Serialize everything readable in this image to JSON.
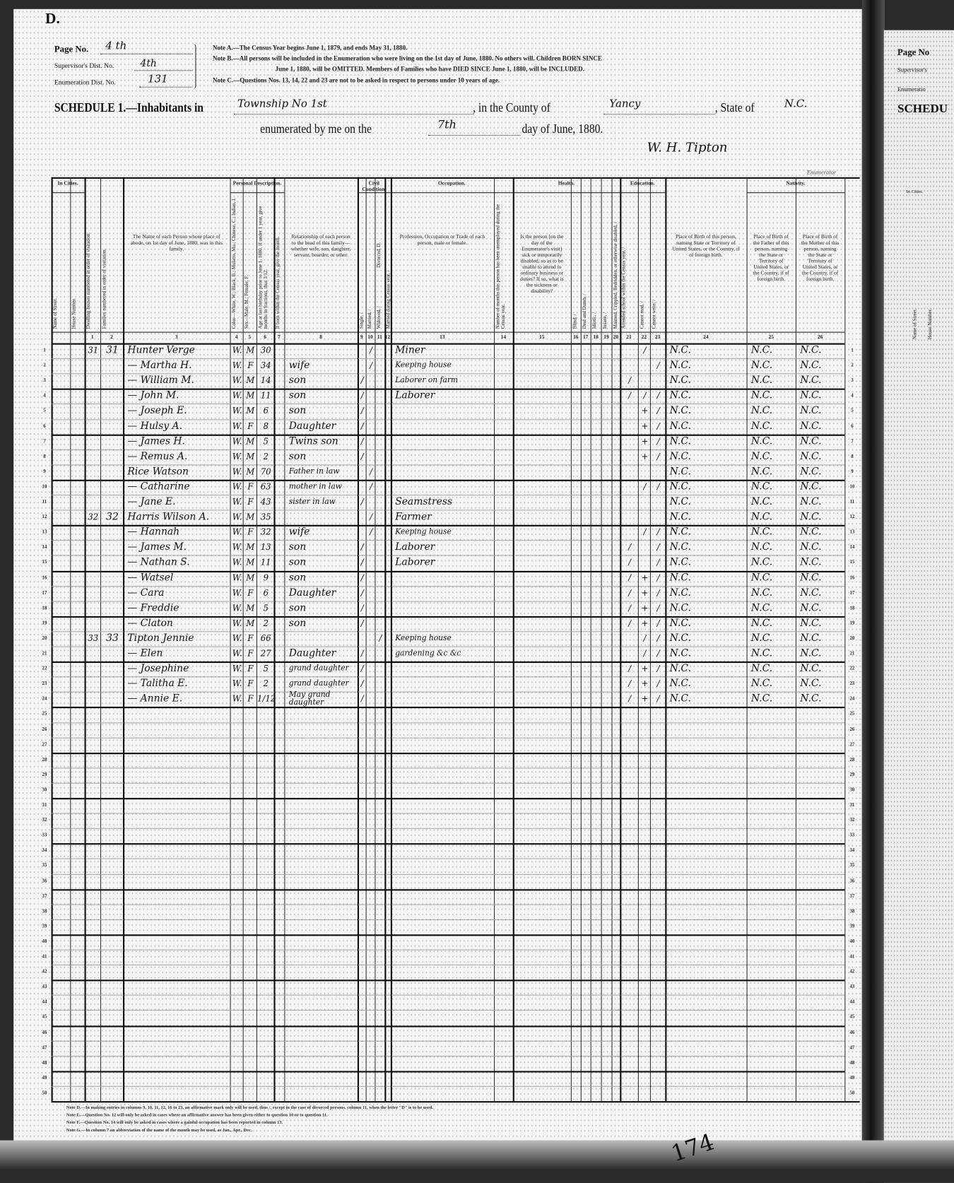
{
  "form_letter": "D.",
  "header": {
    "page_no_label": "Page No.",
    "page_no_value": "4 th",
    "supervisor_label": "Supervisor's Dist. No.",
    "supervisor_value": "4th",
    "enumeration_label": "Enumeration Dist. No.",
    "enumeration_value": "131",
    "notes": [
      "Note A.—The Census Year begins June 1, 1879, and ends May 31, 1880.",
      "Note B.—All persons will be included in the Enumeration who were living on the 1st day of June, 1880.  No others will.  Children BORN SINCE",
      "June 1, 1880, will be OMITTED.  Members of Families who have DIED SINCE June 1, 1880, will be INCLUDED.",
      "Note C.—Questions Nos. 13, 14, 22 and 23 are not to be asked in respect to persons under 10 years of age."
    ],
    "schedule_prefix": "SCHEDULE 1.—Inhabitants in",
    "township_value": "Township No 1st",
    "county_label": ", in the County of",
    "county_value": "Yancy",
    "state_label": ", State of",
    "state_value": "N.C.",
    "enumerated_label": "enumerated by me on the",
    "day_value": "7th",
    "day_suffix": "day of June, 1880.",
    "enumerator_signature": "W. H. Tipton",
    "enumerator_label": "Enumerator"
  },
  "group_headers": {
    "in_cities": "In Cities.",
    "personal": "Personal Description.",
    "civil": "Civil Condition.",
    "occupation": "Occupation.",
    "health": "Health.",
    "education": "Education.",
    "nativity": "Nativity."
  },
  "column_headers": {
    "street": "Name of Street.",
    "house": "House Number.",
    "dwelling": "Dwelling houses numbered in order of visitation.",
    "family": "Families numbered in order of visitation.",
    "name": "The Name of each Person whose place of abode, on 1st day of June, 1880, was in this family.",
    "color": "Color—White, W.; Black, B.; Mulatto, Mu.; Chinese, C.; Indian, I.",
    "sex": "Sex—Male, M.; Female, F.",
    "age": "Age at last birthday prior to June 1, 1880. If under 1 year, give months in fractions, thus 3/12.",
    "month": "If born within the Census year, give the month.",
    "relationship": "Relationship of each person to the head of this family—whether wife, son, daughter, servant, boarder, or other.",
    "single": "Single, /",
    "married": "Married, /",
    "widowed": "Widowed, /",
    "divorced": "Divorced, D.",
    "married_year": "Married during Census year, /",
    "occupation": "Profession, Occupation or Trade of each person, male or female.",
    "unemployed": "Number of months this person has been unemployed during the Census year.",
    "sickness": "Is the person [on the day of the Enumerator's visit] sick or temporarily disabled, so as to be unable to attend to ordinary business or duties? If so, what is the sickness or disability?",
    "blind": "Blind, /",
    "deaf": "Deaf and Dumb, /",
    "idiotic": "Idiotic, /",
    "insane": "Insane, /",
    "maimed": "Maimed, Crippled, Bedridden, or otherwise disabled, /",
    "school": "Attended school within the Census year, /",
    "cannot_read": "Cannot read, /",
    "cannot_write": "Cannot write, /",
    "birthplace": "Place of Birth of this person, naming State or Territory of United States, or the Country, if of foreign birth.",
    "father_birthplace": "Place of Birth of the Father of this person, naming the State or Territory of United States, or the Country, if of foreign birth.",
    "mother_birthplace": "Place of Birth of the Mother of this person, naming the State or Territory of United States, or the Country, if of foreign birth."
  },
  "column_numbers": [
    "1",
    "2",
    "3",
    "4",
    "5",
    "6",
    "7",
    "8",
    "9",
    "10",
    "11",
    "12",
    "13",
    "14",
    "15",
    "16",
    "17",
    "18",
    "19",
    "20",
    "21",
    "22",
    "23",
    "24",
    "25",
    "26"
  ],
  "rows": [
    {
      "dwelling": "31",
      "family": "31",
      "name": "Hunter Verge",
      "color": "W.",
      "sex": "M",
      "age": "30",
      "relationship": "",
      "married": "/",
      "occupation": "Miner",
      "cannot_read": "/",
      "birthplace": "N.C.",
      "father_birthplace": "N.C.",
      "mother_birthplace": "N.C."
    },
    {
      "name": "— Martha H.",
      "color": "W.",
      "sex": "F",
      "age": "34",
      "relationship": "wife",
      "married": "/",
      "occupation": "Keeping house",
      "cannot_write": "/",
      "birthplace": "N.C.",
      "father_birthplace": "N.C.",
      "mother_birthplace": "N.C."
    },
    {
      "name": "— William M.",
      "color": "W.",
      "sex": "M",
      "age": "14",
      "relationship": "son",
      "single": "/",
      "occupation": "Laborer on farm",
      "school": "/",
      "birthplace": "N.C.",
      "father_birthplace": "N.C.",
      "mother_birthplace": "N.C."
    },
    {
      "name": "— John M.",
      "color": "W.",
      "sex": "M",
      "age": "11",
      "relationship": "son",
      "single": "/",
      "occupation": "Laborer",
      "school": "/",
      "cannot_read": "/",
      "cannot_write": "/",
      "birthplace": "N.C.",
      "father_birthplace": "N.C.",
      "mother_birthplace": "N.C."
    },
    {
      "name": "— Joseph E.",
      "color": "W.",
      "sex": "M",
      "age": "6",
      "relationship": "son",
      "single": "/",
      "cannot_read": "+",
      "cannot_write": "/",
      "birthplace": "N.C.",
      "father_birthplace": "N.C.",
      "mother_birthplace": "N.C."
    },
    {
      "name": "— Hulsy A.",
      "color": "W.",
      "sex": "F",
      "age": "8",
      "relationship": "Daughter",
      "single": "/",
      "cannot_read": "+",
      "cannot_write": "/",
      "birthplace": "N.C.",
      "father_birthplace": "N.C.",
      "mother_birthplace": "N.C."
    },
    {
      "name": "— James H.",
      "color": "W.",
      "sex": "M",
      "age": "5",
      "relationship": "Twins son",
      "single": "/",
      "cannot_read": "+",
      "cannot_write": "/",
      "birthplace": "N.C.",
      "father_birthplace": "N.C.",
      "mother_birthplace": "N.C."
    },
    {
      "name": "— Remus A.",
      "color": "W.",
      "sex": "M",
      "age": "2",
      "relationship": "son",
      "single": "/",
      "cannot_read": "+",
      "cannot_write": "/",
      "birthplace": "N.C.",
      "father_birthplace": "N.C.",
      "mother_birthplace": "N.C."
    },
    {
      "name": "Rice Watson",
      "color": "W.",
      "sex": "M",
      "age": "70",
      "relationship": "Father in law",
      "married": "/",
      "birthplace": "N.C.",
      "father_birthplace": "N.C.",
      "mother_birthplace": "N.C."
    },
    {
      "name": "— Catharine",
      "color": "W.",
      "sex": "F",
      "age": "63",
      "relationship": "mother in law",
      "married": "/",
      "cannot_read": "/",
      "cannot_write": "/",
      "birthplace": "N.C.",
      "father_birthplace": "N.C.",
      "mother_birthplace": "N.C."
    },
    {
      "name": "— Jane E.",
      "color": "W.",
      "sex": "F",
      "age": "43",
      "relationship": "sister in law",
      "single": "/",
      "occupation": "Seamstress",
      "birthplace": "N.C.",
      "father_birthplace": "N.C.",
      "mother_birthplace": "N.C."
    },
    {
      "dwelling": "32",
      "family": "32",
      "name": "Harris Wilson A.",
      "color": "W.",
      "sex": "M",
      "age": "35",
      "relationship": "",
      "married": "/",
      "occupation": "Farmer",
      "birthplace": "N.C.",
      "father_birthplace": "N.C.",
      "mother_birthplace": "N.C."
    },
    {
      "name": "— Hannah",
      "color": "W.",
      "sex": "F",
      "age": "32",
      "relationship": "wife",
      "married": "/",
      "occupation": "Keeping house",
      "cannot_read": "/",
      "cannot_write": "/",
      "birthplace": "N.C.",
      "father_birthplace": "N.C.",
      "mother_birthplace": "N.C."
    },
    {
      "name": "— James M.",
      "color": "W.",
      "sex": "M",
      "age": "13",
      "relationship": "son",
      "single": "/",
      "occupation": "Laborer",
      "school": "/",
      "cannot_write": "/",
      "birthplace": "N.C.",
      "father_birthplace": "N.C.",
      "mother_birthplace": "N.C."
    },
    {
      "name": "— Nathan S.",
      "color": "W.",
      "sex": "M",
      "age": "11",
      "relationship": "son",
      "single": "/",
      "occupation": "Laborer",
      "school": "/",
      "cannot_write": "/",
      "birthplace": "N.C.",
      "father_birthplace": "N.C.",
      "mother_birthplace": "N.C."
    },
    {
      "name": "— Watsel",
      "color": "W.",
      "sex": "M",
      "age": "9",
      "relationship": "son",
      "single": "/",
      "school": "/",
      "cannot_read": "+",
      "cannot_write": "/",
      "birthplace": "N.C.",
      "father_birthplace": "N.C.",
      "mother_birthplace": "N.C."
    },
    {
      "name": "— Cara",
      "color": "W.",
      "sex": "F",
      "age": "6",
      "relationship": "Daughter",
      "single": "/",
      "school": "/",
      "cannot_read": "+",
      "cannot_write": "/",
      "birthplace": "N.C.",
      "father_birthplace": "N.C.",
      "mother_birthplace": "N.C."
    },
    {
      "name": "— Freddie",
      "color": "W.",
      "sex": "M",
      "age": "5",
      "relationship": "son",
      "single": "/",
      "school": "/",
      "cannot_read": "+",
      "cannot_write": "/",
      "birthplace": "N.C.",
      "father_birthplace": "N.C.",
      "mother_birthplace": "N.C."
    },
    {
      "name": "— Claton",
      "color": "W.",
      "sex": "M",
      "age": "2",
      "relationship": "son",
      "single": "/",
      "school": "/",
      "cannot_read": "+",
      "cannot_write": "/",
      "birthplace": "N.C.",
      "father_birthplace": "N.C.",
      "mother_birthplace": "N.C."
    },
    {
      "dwelling": "33",
      "family": "33",
      "name": "Tipton Jennie",
      "color": "W.",
      "sex": "F",
      "age": "66",
      "relationship": "",
      "widowed": "/",
      "occupation": "Keeping house",
      "cannot_read": "/",
      "cannot_write": "/",
      "birthplace": "N.C.",
      "father_birthplace": "N.C.",
      "mother_birthplace": "N.C."
    },
    {
      "name": "— Elen",
      "color": "W.",
      "sex": "F",
      "age": "27",
      "relationship": "Daughter",
      "single": "/",
      "occupation": "gardening &c &c",
      "cannot_read": "/",
      "cannot_write": "/",
      "birthplace": "N.C.",
      "father_birthplace": "N.C.",
      "mother_birthplace": "N.C."
    },
    {
      "name": "— Josephine",
      "color": "W.",
      "sex": "F",
      "age": "5",
      "relationship": "grand daughter",
      "single": "/",
      "school": "/",
      "cannot_read": "+",
      "cannot_write": "/",
      "birthplace": "N.C.",
      "father_birthplace": "N.C.",
      "mother_birthplace": "N.C."
    },
    {
      "name": "— Talitha E.",
      "color": "W.",
      "sex": "F",
      "age": "2",
      "relationship": "grand daughter",
      "single": "/",
      "school": "/",
      "cannot_read": "+",
      "cannot_write": "/",
      "birthplace": "N.C.",
      "father_birthplace": "N.C.",
      "mother_birthplace": "N.C."
    },
    {
      "name": "— Annie E.",
      "color": "W.",
      "sex": "F",
      "age": "1/12",
      "relationship": "May grand daughter",
      "single": "/",
      "school": "/",
      "cannot_read": "+",
      "cannot_write": "/",
      "birthplace": "N.C.",
      "father_birthplace": "N.C.",
      "mother_birthplace": "N.C."
    }
  ],
  "footer_notes": [
    "Note D.—In making entries in columns 9, 10, 11, 12, 16 to 23, an affirmative mark only will be used, thus /, except in the case of divorced persons, column 11, when the letter \"D\" is to be used.",
    "Note E.—Question No. 12 will only be asked in cases where an affirmative answer has been given either to question 10 or to question 11.",
    "Note F.—Question No. 14 will only be asked in cases where a gainful occupation has been reported in column 13.",
    "Note G.—In column 7 an abbreviation of the name of the month may be used, as Jan., Apr., Dec."
  ],
  "stamped_page_number": "174",
  "adjacent_page": {
    "page_no": "Page No",
    "supervisor": "Supervisor's",
    "enumeration": "Enumeratio",
    "schedule": "SCHEDU",
    "in_cities": "In Cities.",
    "street": "Name of Street.",
    "house": "House Number."
  }
}
